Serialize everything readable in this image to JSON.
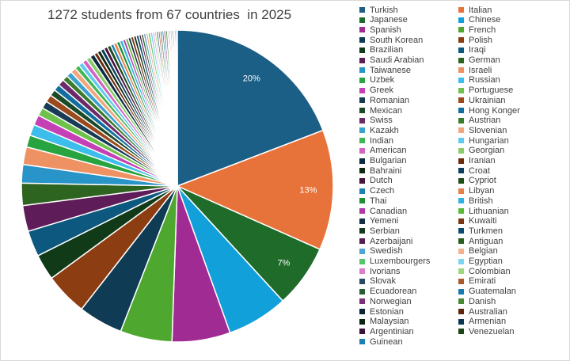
{
  "chart_data": {
    "type": "pie",
    "title": "1272 students from 67 countries  in 2025",
    "data_labels": [
      "20%",
      "13%",
      "7%"
    ],
    "legend_position": "right",
    "slices": [
      {
        "name": "Turkish",
        "value": 20.0,
        "color": "#1b5e86"
      },
      {
        "name": "Italian",
        "value": 13.0,
        "color": "#e8733a"
      },
      {
        "name": "Japanese",
        "value": 6.8,
        "color": "#1e6b2a"
      },
      {
        "name": "Chinese",
        "value": 6.6,
        "color": "#11a0d9"
      },
      {
        "name": "Spanish",
        "value": 6.3,
        "color": "#a02b93"
      },
      {
        "name": "French",
        "value": 5.6,
        "color": "#4ea72e"
      },
      {
        "name": "South Korean",
        "value": 4.8,
        "color": "#0f3b55"
      },
      {
        "name": "Polish",
        "value": 4.6,
        "color": "#8c3d12"
      },
      {
        "name": "Brazilian",
        "value": 2.8,
        "color": "#113a18"
      },
      {
        "name": "Iraqi",
        "value": 2.8,
        "color": "#0d587f"
      },
      {
        "name": "Saudi Arabian",
        "value": 2.8,
        "color": "#5e1c58"
      },
      {
        "name": "German",
        "value": 2.4,
        "color": "#2c6420"
      },
      {
        "name": "Taiwanese",
        "value": 2.0,
        "color": "#2894c7"
      },
      {
        "name": "Israeli",
        "value": 1.9,
        "color": "#ef9263"
      },
      {
        "name": "Uzbek",
        "value": 1.3,
        "color": "#27a33f"
      },
      {
        "name": "Russian",
        "value": 1.2,
        "color": "#3dbdec"
      },
      {
        "name": "Greek",
        "value": 1.1,
        "color": "#c540b4"
      },
      {
        "name": "Portuguese",
        "value": 0.9,
        "color": "#6fc14c"
      },
      {
        "name": "Romanian",
        "value": 0.8,
        "color": "#183c55"
      },
      {
        "name": "Ukrainian",
        "value": 0.8,
        "color": "#9b4a1d"
      },
      {
        "name": "Mexican",
        "value": 0.7,
        "color": "#1a4a26"
      },
      {
        "name": "Hong Konger",
        "value": 0.7,
        "color": "#126ea0"
      },
      {
        "name": "Swiss",
        "value": 0.7,
        "color": "#6d2a6a"
      },
      {
        "name": "Austrian",
        "value": 0.6,
        "color": "#3c7a2c"
      },
      {
        "name": "Kazakh",
        "value": 0.6,
        "color": "#3aa2cf"
      },
      {
        "name": "Slovenian",
        "value": 0.6,
        "color": "#f2a67e"
      },
      {
        "name": "Indian",
        "value": 0.5,
        "color": "#3fb553"
      },
      {
        "name": "Hungarian",
        "value": 0.5,
        "color": "#5fcaf0"
      },
      {
        "name": "American",
        "value": 0.5,
        "color": "#d163c3"
      },
      {
        "name": "Georgian",
        "value": 0.5,
        "color": "#8acc6a"
      },
      {
        "name": "Bulgarian",
        "value": 0.5,
        "color": "#0d2b40"
      },
      {
        "name": "Iranian",
        "value": 0.4,
        "color": "#6a2c0c"
      },
      {
        "name": "Bahraini",
        "value": 0.4,
        "color": "#0d2a12"
      },
      {
        "name": "Croat",
        "value": 0.4,
        "color": "#0a3f5e"
      },
      {
        "name": "Dutch",
        "value": 0.4,
        "color": "#451540"
      },
      {
        "name": "Cypriot",
        "value": 0.4,
        "color": "#1f4d18"
      },
      {
        "name": "Czech",
        "value": 0.35,
        "color": "#1e82b8"
      },
      {
        "name": "Libyan",
        "value": 0.35,
        "color": "#e6804c"
      },
      {
        "name": "Thai",
        "value": 0.35,
        "color": "#1f8f34"
      },
      {
        "name": "British",
        "value": 0.35,
        "color": "#2fb2e6"
      },
      {
        "name": "Canadian",
        "value": 0.3,
        "color": "#b03aa5"
      },
      {
        "name": "Lithuanian",
        "value": 0.3,
        "color": "#5db93a"
      },
      {
        "name": "Yemeni",
        "value": 0.3,
        "color": "#112f45"
      },
      {
        "name": "Kuwaiti",
        "value": 0.3,
        "color": "#7a3512"
      },
      {
        "name": "Serbian",
        "value": 0.3,
        "color": "#14391d"
      },
      {
        "name": "Turkmen",
        "value": 0.3,
        "color": "#0e4a6c"
      },
      {
        "name": "Azerbaijani",
        "value": 0.25,
        "color": "#571e52"
      },
      {
        "name": "Antiguan",
        "value": 0.25,
        "color": "#2a5e20"
      },
      {
        "name": "Swedish",
        "value": 0.25,
        "color": "#4fa6d3"
      },
      {
        "name": "Belgian",
        "value": 0.25,
        "color": "#f4b18f"
      },
      {
        "name": "Luxembourgers",
        "value": 0.25,
        "color": "#54c66a"
      },
      {
        "name": "Egyptian",
        "value": 0.25,
        "color": "#7dd3f2"
      },
      {
        "name": "Ivorians",
        "value": 0.2,
        "color": "#d97fcd"
      },
      {
        "name": "Colombian",
        "value": 0.2,
        "color": "#9fd680"
      },
      {
        "name": "Slovak",
        "value": 0.2,
        "color": "#2a4a63"
      },
      {
        "name": "Emirati",
        "value": 0.2,
        "color": "#a85a2c"
      },
      {
        "name": "Ecuadorean",
        "value": 0.2,
        "color": "#255e30"
      },
      {
        "name": "Guatemalan",
        "value": 0.2,
        "color": "#1879ad"
      },
      {
        "name": "Norwegian",
        "value": 0.2,
        "color": "#7c2f76"
      },
      {
        "name": "Danish",
        "value": 0.2,
        "color": "#468a34"
      },
      {
        "name": "Estonian",
        "value": 0.15,
        "color": "#0c2536"
      },
      {
        "name": "Australian",
        "value": 0.15,
        "color": "#5c260b"
      },
      {
        "name": "Malaysian",
        "value": 0.15,
        "color": "#0b240f"
      },
      {
        "name": "Armenian",
        "value": 0.15,
        "color": "#0a3550"
      },
      {
        "name": "Argentinian",
        "value": 0.15,
        "color": "#3c1238"
      },
      {
        "name": "Venezuelan",
        "value": 0.15,
        "color": "#1a4514"
      },
      {
        "name": "Guinean",
        "value": 0.15,
        "color": "#1c7fb3"
      }
    ]
  }
}
